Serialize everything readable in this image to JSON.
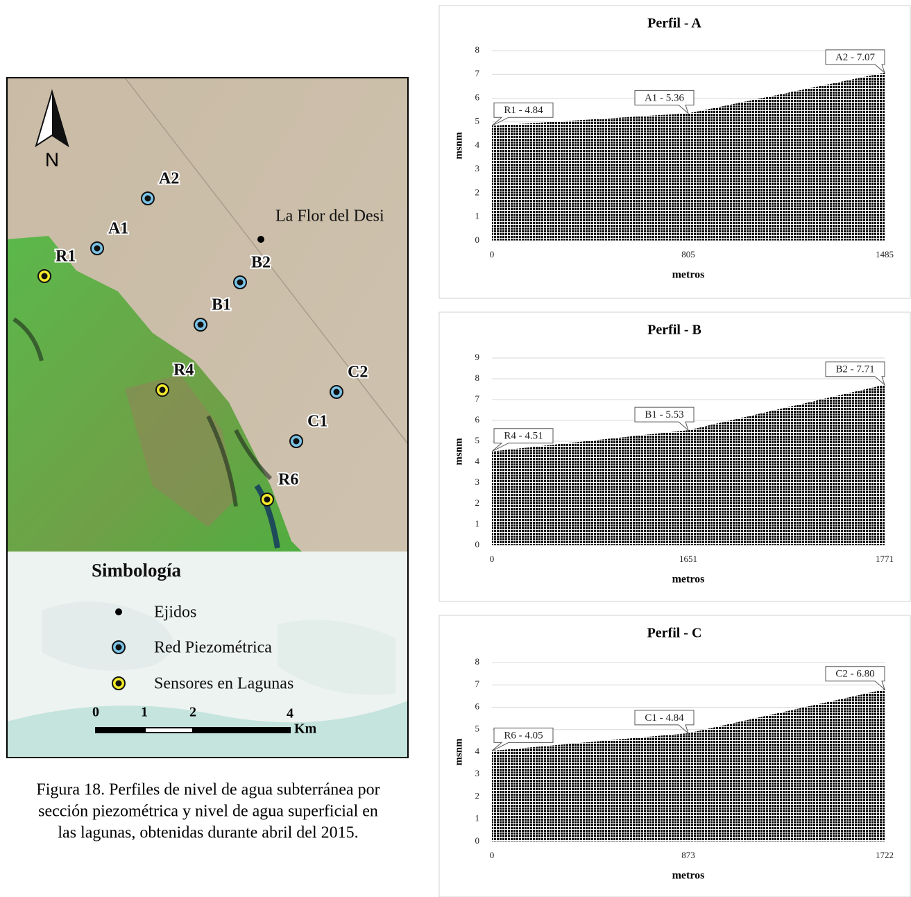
{
  "map": {
    "north": "N",
    "town": "La Flor del Desi",
    "points": [
      "A2",
      "A1",
      "R1",
      "B2",
      "B1",
      "R4",
      "C2",
      "C1",
      "R6"
    ],
    "legend": {
      "title": "Simbología",
      "items": [
        "Ejidos",
        "Red Piezométrica",
        "Sensores en Lagunas"
      ]
    },
    "scale": {
      "labels": [
        "0",
        "1",
        "2",
        "4"
      ],
      "unit": "Km"
    }
  },
  "caption": [
    "Figura 18. Perfiles de nivel de agua subterránea por",
    "sección piezométrica y nivel de agua superficial en",
    "las lagunas, obtenidas durante abril del 2015."
  ],
  "chart_data": [
    {
      "type": "area",
      "title": "Perfil - A",
      "x_label": "metros",
      "y_label": "msnm",
      "color": "#6f9fd8",
      "categories": [
        "0",
        "805",
        "1485"
      ],
      "values": [
        4.84,
        5.36,
        7.07
      ],
      "value_labels": [
        "R1 - 4.84",
        "A1 - 5.36",
        "A2 - 7.07"
      ],
      "ylim": [
        0,
        8
      ],
      "yticks": [
        0,
        1,
        2,
        3,
        4,
        5,
        6,
        7,
        8
      ],
      "grid": true
    },
    {
      "type": "area",
      "title": "Perfil - B",
      "x_label": "metros",
      "y_label": "msnm",
      "color": "#6f9fd8",
      "categories": [
        "0",
        "1651",
        "1771"
      ],
      "values": [
        4.51,
        5.53,
        7.71
      ],
      "value_labels": [
        "R4 - 4.51",
        "B1 - 5.53",
        "B2 - 7.71"
      ],
      "ylim": [
        0,
        9
      ],
      "yticks": [
        0,
        1,
        2,
        3,
        4,
        5,
        6,
        7,
        8,
        9
      ],
      "grid": true
    },
    {
      "type": "area",
      "title": "Perfil - C",
      "x_label": "metros",
      "y_label": "msnm",
      "color": "#6f9fd8",
      "categories": [
        "0",
        "873",
        "1722"
      ],
      "values": [
        4.05,
        4.84,
        6.8
      ],
      "value_labels": [
        "R6 - 4.05",
        "C1 - 4.84",
        "C2 - 6.80"
      ],
      "ylim": [
        0,
        8
      ],
      "yticks": [
        0,
        1,
        2,
        3,
        4,
        5,
        6,
        7,
        8
      ],
      "grid": true
    }
  ]
}
